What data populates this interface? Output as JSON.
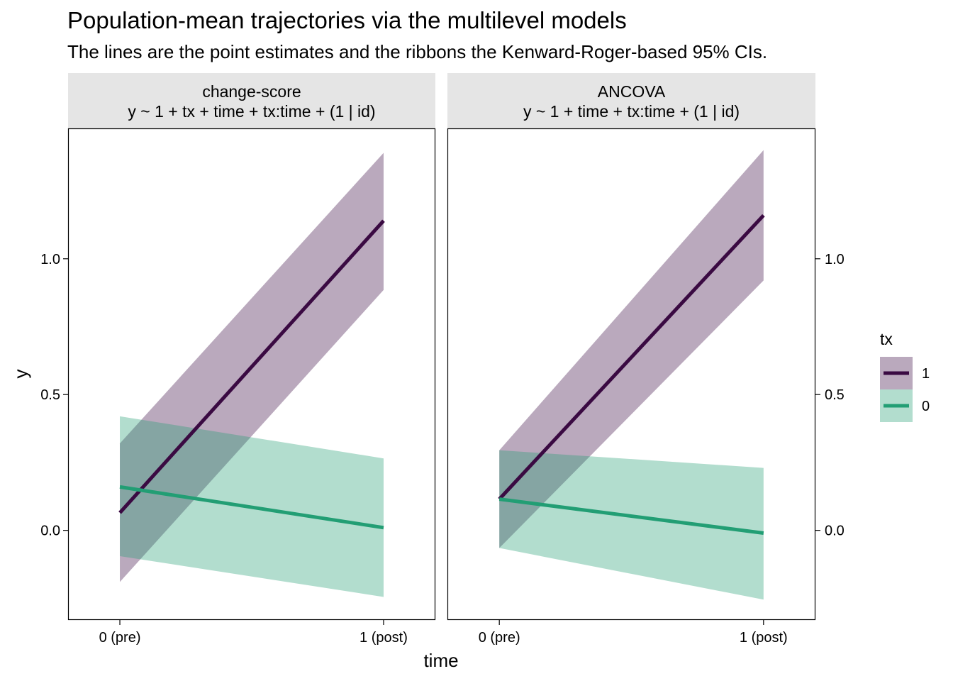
{
  "title": "Population-mean trajectories via the multilevel models",
  "subtitle": "The lines are the point estimates and the ribbons the Kenward-Roger-based 95% CIs.",
  "colors": {
    "tx1": "#3a0a42",
    "tx1_ribbon": "#b9a5c0",
    "tx0": "#229e74",
    "tx0_ribbon": "#b3dfd1",
    "strip_bg": "#e5e5e5",
    "overlap": "#84a3a0"
  },
  "chart_data": {
    "type": "line",
    "xlabel": "time",
    "ylabel": "y",
    "x_categories": [
      "0 (pre)",
      "1 (post)"
    ],
    "ylim": [
      -0.33,
      1.48
    ],
    "yticks": [
      0.0,
      0.5,
      1.0
    ],
    "ytick_labels": [
      "0.0",
      "0.5",
      "1.0"
    ],
    "grid": false,
    "legend": {
      "title": "tx",
      "position": "right",
      "entries": [
        {
          "label": "1",
          "color_key": "tx1"
        },
        {
          "label": "0",
          "color_key": "tx0"
        }
      ]
    },
    "panels": [
      {
        "strip_line1": "change-score",
        "strip_line2": "y ~ 1 + tx + time + tx:time + (1 | id)",
        "series": [
          {
            "tx": "1",
            "estimate": [
              0.065,
              1.14
            ],
            "lower": [
              -0.19,
              0.885
            ],
            "upper": [
              0.32,
              1.39
            ]
          },
          {
            "tx": "0",
            "estimate": [
              0.16,
              0.01
            ],
            "lower": [
              -0.095,
              -0.245
            ],
            "upper": [
              0.42,
              0.265
            ]
          }
        ]
      },
      {
        "strip_line1": "ANCOVA",
        "strip_line2": "y ~ 1 + time + tx:time + (1 | id)",
        "series": [
          {
            "tx": "1",
            "estimate": [
              0.115,
              1.16
            ],
            "lower": [
              -0.065,
              0.92
            ],
            "upper": [
              0.295,
              1.4
            ]
          },
          {
            "tx": "0",
            "estimate": [
              0.115,
              -0.01
            ],
            "lower": [
              -0.065,
              -0.255
            ],
            "upper": [
              0.295,
              0.23
            ]
          }
        ]
      }
    ]
  }
}
